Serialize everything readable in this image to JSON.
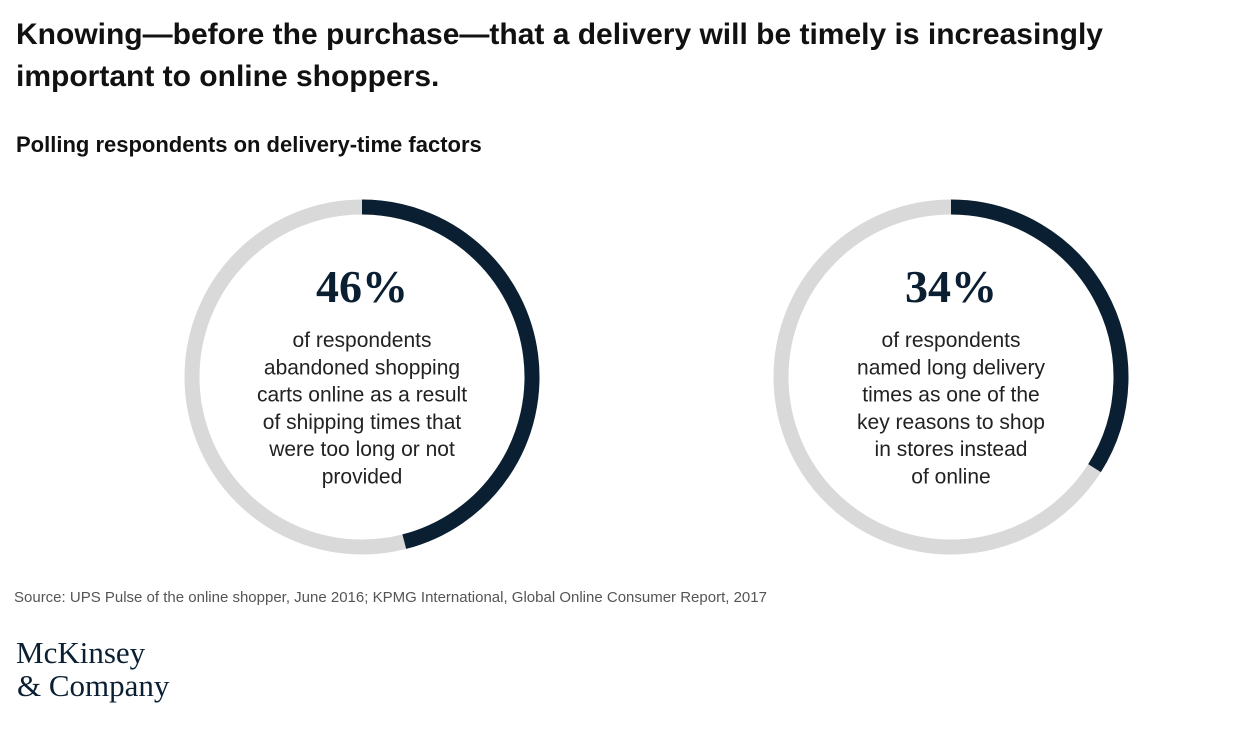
{
  "title": "Knowing—before the purchase—that a delivery will be timely is increasingly important to online shoppers.",
  "subtitle": "Polling respondents on delivery-time factors",
  "source": "Source: UPS Pulse of the online shopper, June 2016; KPMG International, Global Online Consumer Report, 2017",
  "logo": [
    "McKinsey",
    "& Company"
  ],
  "chart_data": [
    {
      "type": "donut",
      "values": [
        46
      ],
      "value_labels": [
        "46%"
      ],
      "ylim": [
        0,
        100
      ],
      "color": "#0b1f33",
      "track_color": "#d9d9d9",
      "description": [
        "of respondents",
        "abandoned shopping",
        "carts online as a result",
        "of shipping times that",
        "were too long or not",
        "provided"
      ]
    },
    {
      "type": "donut",
      "values": [
        34
      ],
      "value_labels": [
        "34%"
      ],
      "ylim": [
        0,
        100
      ],
      "color": "#0b1f33",
      "track_color": "#d9d9d9",
      "description": [
        "of respondents",
        "named long delivery",
        "times as one of the",
        "key reasons to shop",
        "in stores instead",
        "of online"
      ]
    }
  ]
}
